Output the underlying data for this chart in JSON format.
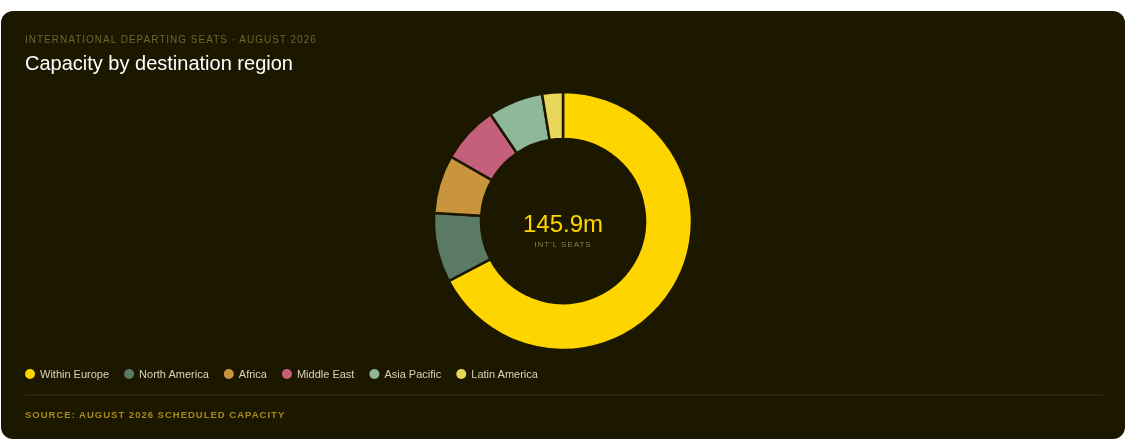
{
  "chart_data": {
    "type": "donut",
    "subtitle": "INTERNATIONAL DEPARTING SEATS · AUGUST 2026",
    "title": "Capacity by destination region",
    "categories": [
      "Within Europe",
      "North America",
      "Africa",
      "Middle East",
      "Asia Pacific",
      "Latin America"
    ],
    "values": [
      67.3,
      8.7,
      7.3,
      7.2,
      6.9,
      2.6
    ],
    "colors": [
      "#ffd500",
      "#5b7a66",
      "#c8953d",
      "#c5607c",
      "#8fb89b",
      "#e8d75a"
    ],
    "annotations": [
      "145.9m",
      "INT'L SEATS",
      "SOURCE: AUGUST 2026 SCHEDULED CAPACITY"
    ],
    "legend": "bottom left"
  }
}
